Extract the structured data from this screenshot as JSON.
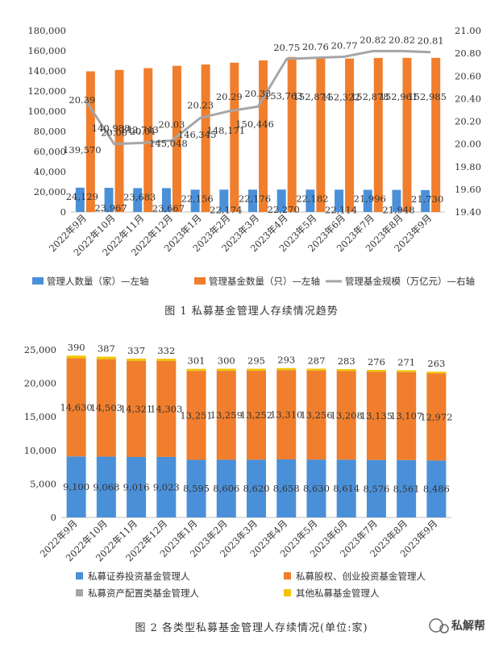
{
  "chart_data": [
    {
      "type": "bar",
      "title": "图 1 私募基金管理人存续情况趋势",
      "categories": [
        "2022年9月",
        "2022年10月",
        "2022年11月",
        "2022年12月",
        "2023年1月",
        "2023年2月",
        "2023年3月",
        "2023年4月",
        "2023年5月",
        "2023年6月",
        "2023年7月",
        "2023年8月",
        "2023年9月"
      ],
      "series": [
        {
          "name": "管理人数量（家）—左轴",
          "kind": "bar",
          "axis": "left",
          "color": "#4a90d9",
          "values": [
            24129,
            23967,
            23683,
            23667,
            22156,
            22174,
            22176,
            22270,
            22182,
            22114,
            21996,
            21948,
            21730
          ],
          "labels": [
            "24,129",
            "23,967",
            "23,683",
            "23,667",
            "22,156",
            "22,174",
            "22,176",
            "22,270",
            "22,182",
            "22,114",
            "21,996",
            "21,948",
            "21,730"
          ]
        },
        {
          "name": "管理基金数量（只）—左轴",
          "kind": "bar",
          "axis": "left",
          "color": "#f07e2c",
          "values": [
            139570,
            140988,
            142743,
            145048,
            146345,
            148171,
            150446,
            153763,
            152874,
            152322,
            152878,
            152961,
            152985
          ],
          "labels": [
            "139,570",
            "140,988",
            "142,743",
            "145,048",
            "146,345",
            "148,171",
            "150,446",
            "153,763",
            "152,874",
            "152,322",
            "152,878",
            "152,961",
            "152,985"
          ]
        },
        {
          "name": "管理基金规模（万亿元）—右轴",
          "kind": "line",
          "axis": "right",
          "color": "#a6a6a6",
          "values": [
            20.39,
            20.0,
            20.01,
            20.03,
            20.23,
            20.29,
            20.33,
            20.75,
            20.76,
            20.77,
            20.82,
            20.82,
            20.81
          ],
          "labels": [
            "20.39",
            "20.00",
            "20.01",
            "20.03",
            "20.23",
            "20.29",
            "20.33",
            "20.75",
            "20.76",
            "20.77",
            "20.82",
            "20.82",
            "20.81"
          ]
        }
      ],
      "yleft": {
        "min": 0,
        "max": 180000,
        "ticks": [
          "0",
          "20,000",
          "40,000",
          "60,000",
          "80,000",
          "100,000",
          "120,000",
          "140,000",
          "160,000",
          "180,000"
        ]
      },
      "yright": {
        "min": 19.4,
        "max": 21.0,
        "ticks": [
          "19.40",
          "19.60",
          "19.80",
          "20.00",
          "20.20",
          "20.40",
          "20.60",
          "20.80",
          "21.00"
        ]
      },
      "legend_position": "bottom"
    },
    {
      "type": "bar",
      "stacked": true,
      "title": "图 2 各类型私募基金管理人存续情况(单位:家)",
      "categories": [
        "2022年9月",
        "2022年10月",
        "2022年11月",
        "2022年12月",
        "2023年1月",
        "2023年2月",
        "2023年3月",
        "2023年4月",
        "2023年5月",
        "2023年6月",
        "2023年7月",
        "2023年8月",
        "2023年9月"
      ],
      "series": [
        {
          "name": "私募证券投资基金管理人",
          "color": "#4a90d9",
          "values": [
            9100,
            9068,
            9016,
            9023,
            8595,
            8606,
            8620,
            8658,
            8630,
            8614,
            8576,
            8561,
            8486
          ],
          "labels": [
            "9,100",
            "9,068",
            "9,016",
            "9,023",
            "8,595",
            "8,606",
            "8,620",
            "8,658",
            "8,630",
            "8,614",
            "8,576",
            "8,561",
            "8,486"
          ]
        },
        {
          "name": "私募股权、创业投资基金管理人",
          "color": "#f07e2c",
          "values": [
            14630,
            14503,
            14321,
            14303,
            13251,
            13259,
            13252,
            13310,
            13256,
            13208,
            13135,
            13107,
            12972
          ],
          "labels": [
            "14,630",
            "14,503",
            "14,321",
            "14,303",
            "13,251",
            "13,259",
            "13,252",
            "13,310",
            "13,256",
            "13,208",
            "13,135",
            "13,107",
            "12,972"
          ]
        },
        {
          "name": "私募资产配置类基金管理人",
          "color": "#a6a6a6",
          "values": [
            9,
            9,
            9,
            9,
            9,
            9,
            9,
            9,
            9,
            9,
            9,
            9,
            9
          ]
        },
        {
          "name": "其他私募基金管理人",
          "color": "#f5c400",
          "values": [
            390,
            387,
            337,
            332,
            301,
            300,
            295,
            293,
            287,
            283,
            276,
            271,
            263
          ],
          "labels": [
            "390",
            "387",
            "337",
            "332",
            "301",
            "300",
            "295",
            "293",
            "287",
            "283",
            "276",
            "271",
            "263"
          ]
        }
      ],
      "yleft": {
        "min": 0,
        "max": 25000,
        "ticks": [
          "0",
          "5,000",
          "10,000",
          "15,000",
          "20,000",
          "25,000"
        ]
      },
      "legend_position": "bottom"
    }
  ],
  "watermark": "私解帮"
}
